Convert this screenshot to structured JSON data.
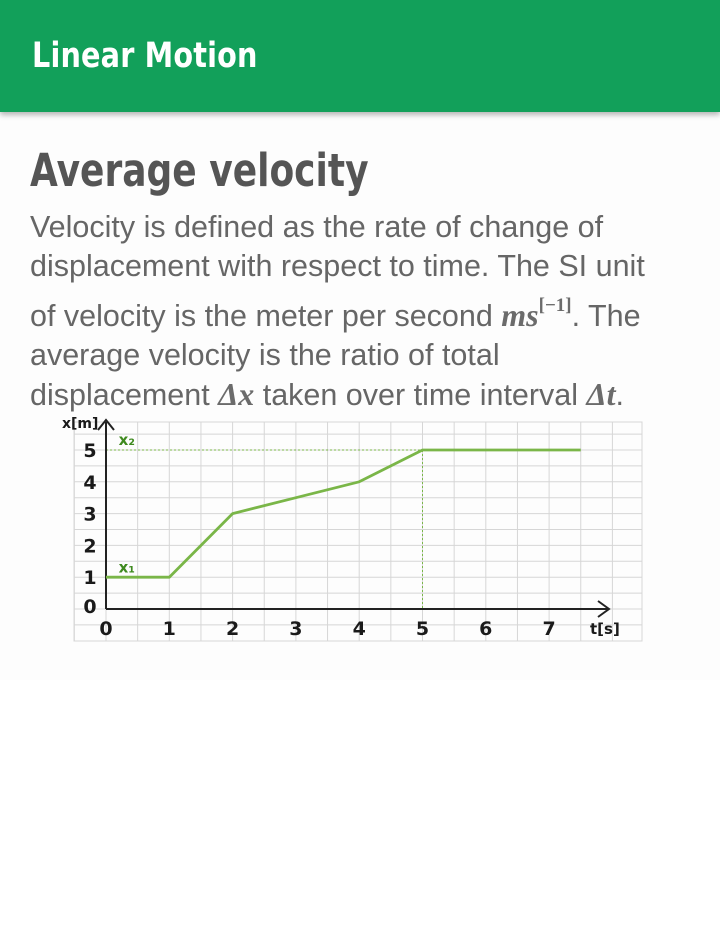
{
  "app_bar": {
    "title": "Linear Motion"
  },
  "article": {
    "heading": "Average velocity",
    "paragraph": {
      "line1": "Velocity is defined as the rate of change of",
      "line2": "displacement with respect to time. The SI unit",
      "line3_pre": "of velocity is the meter per second ",
      "unit_base": "ms",
      "unit_exp": "[−1]",
      "line3_post": ". The",
      "line4": "average velocity is the ratio of total",
      "line5_pre": "displacement ",
      "symbol_dx": "Δx",
      "line5_mid": " taken over time interval ",
      "symbol_dt": "Δt",
      "line5_post": "."
    }
  },
  "chart_data": {
    "type": "line",
    "title": "",
    "xlabel": "t[s]",
    "ylabel": "x[m]",
    "xlim": [
      0,
      8
    ],
    "ylim": [
      0,
      5.5
    ],
    "x_ticks": [
      "0",
      "1",
      "2",
      "3",
      "4",
      "5",
      "6",
      "7"
    ],
    "y_ticks": [
      "0",
      "1",
      "2",
      "3",
      "4",
      "5"
    ],
    "grid": true,
    "series": [
      {
        "x": [
          0,
          1,
          2,
          3,
          4,
          5,
          7.5
        ],
        "y": [
          1,
          1,
          3,
          3.5,
          4,
          5,
          5
        ],
        "color": "#7ab648"
      }
    ],
    "annotations": [
      {
        "text": "x₁",
        "x": 0.2,
        "y": 1.15
      },
      {
        "text": "x₂",
        "x": 0.2,
        "y": 5.15
      }
    ],
    "reference_lines": {
      "y_at_x2": 5,
      "x_at_x2": 5
    }
  }
}
